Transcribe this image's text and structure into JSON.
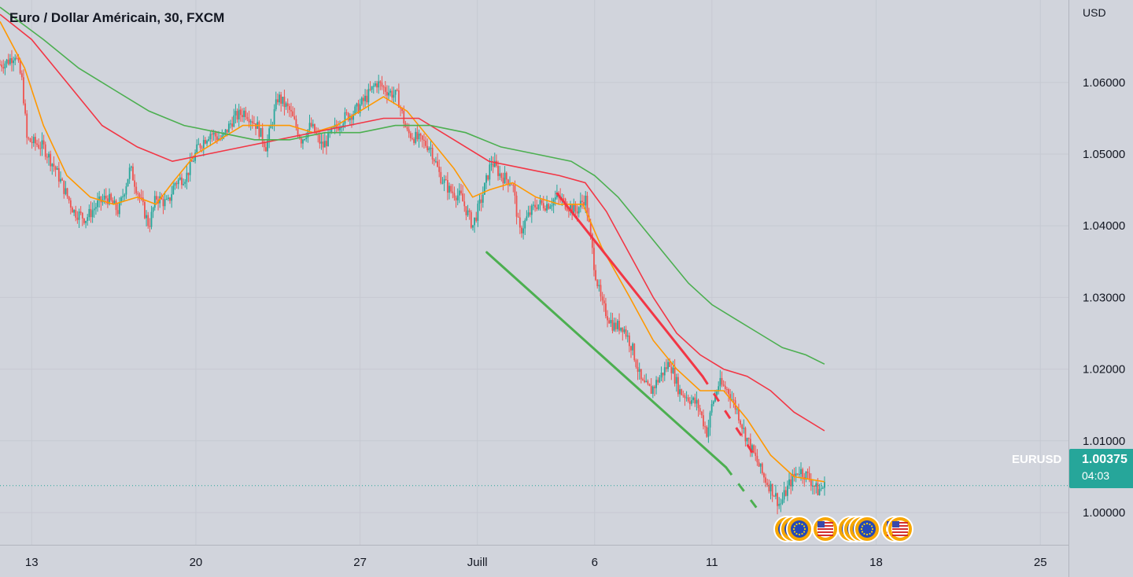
{
  "header": {
    "title": "Euro / Dollar Américain, 30, FXCM",
    "currency": "USD"
  },
  "last_price": {
    "symbol": "EURUSD",
    "value": "1.00375",
    "countdown": "04:03",
    "color": "#26a69a"
  },
  "colors": {
    "background": "#d1d4dc",
    "grid": "#c6c9d2",
    "candle_up": "#26a69a",
    "candle_down": "#ef5350",
    "ema_fast": "#ff9800",
    "ema_mid": "#f23645",
    "ema_slow": "#4caf50",
    "trend_upper": "#f23645",
    "trend_lower": "#4caf50"
  },
  "chart_data": {
    "type": "candlestick",
    "title": "Euro / Dollar Américain, 30, FXCM",
    "ylabel": "USD",
    "ylim": [
      0.9955,
      1.0715
    ],
    "y_ticks": [
      "1.06000",
      "1.05000",
      "1.04000",
      "1.03000",
      "1.02000",
      "1.01000",
      "1.00000"
    ],
    "x_ticks": [
      {
        "label": "13",
        "day": 0
      },
      {
        "label": "20",
        "day": 7
      },
      {
        "label": "27",
        "day": 14
      },
      {
        "label": "Juill",
        "day": 19
      },
      {
        "label": "6",
        "day": 24
      },
      {
        "label": "11",
        "day": 29
      },
      {
        "label": "18",
        "day": 36
      },
      {
        "label": "25",
        "day": 43
      }
    ],
    "xlim": [
      -1.35,
      44.2
    ],
    "price_path": [
      [
        -1.35,
        1.0625
      ],
      [
        -1.0,
        1.063
      ],
      [
        -0.7,
        1.064
      ],
      [
        -0.4,
        1.06
      ],
      [
        -0.2,
        1.052
      ],
      [
        0.5,
        1.051
      ],
      [
        1.0,
        1.048
      ],
      [
        1.4,
        1.045
      ],
      [
        1.8,
        1.042
      ],
      [
        2.3,
        1.041
      ],
      [
        2.8,
        1.043
      ],
      [
        3.2,
        1.044
      ],
      [
        3.7,
        1.042
      ],
      [
        4.2,
        1.048
      ],
      [
        4.7,
        1.043
      ],
      [
        5.0,
        1.04
      ],
      [
        5.3,
        1.044
      ],
      [
        5.8,
        1.043
      ],
      [
        6.1,
        1.046
      ],
      [
        6.6,
        1.047
      ],
      [
        7.1,
        1.051
      ],
      [
        7.6,
        1.053
      ],
      [
        8.1,
        1.052
      ],
      [
        8.6,
        1.055
      ],
      [
        9.1,
        1.056
      ],
      [
        9.6,
        1.054
      ],
      [
        10.0,
        1.051
      ],
      [
        10.5,
        1.058
      ],
      [
        11.0,
        1.056
      ],
      [
        11.5,
        1.052
      ],
      [
        11.9,
        1.054
      ],
      [
        12.4,
        1.051
      ],
      [
        12.8,
        1.053
      ],
      [
        13.3,
        1.055
      ],
      [
        13.8,
        1.056
      ],
      [
        14.3,
        1.058
      ],
      [
        14.7,
        1.06
      ],
      [
        15.1,
        1.059
      ],
      [
        15.6,
        1.058
      ],
      [
        16.0,
        1.053
      ],
      [
        16.5,
        1.052
      ],
      [
        17.0,
        1.051
      ],
      [
        17.4,
        1.047
      ],
      [
        17.8,
        1.045
      ],
      [
        18.3,
        1.044
      ],
      [
        18.8,
        1.04
      ],
      [
        19.2,
        1.044
      ],
      [
        19.6,
        1.049
      ],
      [
        20.0,
        1.047
      ],
      [
        20.5,
        1.046
      ],
      [
        20.8,
        1.039
      ],
      [
        21.1,
        1.041
      ],
      [
        21.5,
        1.043
      ],
      [
        22.0,
        1.043
      ],
      [
        22.4,
        1.044
      ],
      [
        22.8,
        1.043
      ],
      [
        23.2,
        1.042
      ],
      [
        23.6,
        1.044
      ],
      [
        24.0,
        1.034
      ],
      [
        24.3,
        1.029
      ],
      [
        24.8,
        1.026
      ],
      [
        25.2,
        1.026
      ],
      [
        25.6,
        1.023
      ],
      [
        26.0,
        1.018
      ],
      [
        26.4,
        1.017
      ],
      [
        26.8,
        1.019
      ],
      [
        27.2,
        1.021
      ],
      [
        27.6,
        1.017
      ],
      [
        28.0,
        1.016
      ],
      [
        28.4,
        1.015
      ],
      [
        28.8,
        1.011
      ],
      [
        29.0,
        1.015
      ],
      [
        29.3,
        1.018
      ],
      [
        29.7,
        1.017
      ],
      [
        30.1,
        1.014
      ],
      [
        30.4,
        1.011
      ],
      [
        30.8,
        1.008
      ],
      [
        31.2,
        1.005
      ],
      [
        31.6,
        1.003
      ],
      [
        31.9,
        1.001
      ],
      [
        32.3,
        1.004
      ],
      [
        32.7,
        1.006
      ],
      [
        33.1,
        1.005
      ],
      [
        33.5,
        1.003
      ],
      [
        33.8,
        1.0037
      ]
    ],
    "series": [
      {
        "kind": "ema_fast",
        "points": [
          [
            -1.35,
            1.0685
          ],
          [
            -0.3,
            1.062
          ],
          [
            0.5,
            1.054
          ],
          [
            1.5,
            1.047
          ],
          [
            2.5,
            1.044
          ],
          [
            3.5,
            1.043
          ],
          [
            4.5,
            1.044
          ],
          [
            5.3,
            1.043
          ],
          [
            6.0,
            1.046
          ],
          [
            7.0,
            1.05
          ],
          [
            8.0,
            1.052
          ],
          [
            9.0,
            1.054
          ],
          [
            10.0,
            1.054
          ],
          [
            11.0,
            1.054
          ],
          [
            12.0,
            1.053
          ],
          [
            13.0,
            1.054
          ],
          [
            14.0,
            1.056
          ],
          [
            15.0,
            1.058
          ],
          [
            16.0,
            1.056
          ],
          [
            17.0,
            1.052
          ],
          [
            18.0,
            1.048
          ],
          [
            18.8,
            1.044
          ],
          [
            19.5,
            1.045
          ],
          [
            20.5,
            1.046
          ],
          [
            21.5,
            1.044
          ],
          [
            22.5,
            1.043
          ],
          [
            23.5,
            1.043
          ],
          [
            24.3,
            1.037
          ],
          [
            25.5,
            1.03
          ],
          [
            26.5,
            1.024
          ],
          [
            27.5,
            1.02
          ],
          [
            28.5,
            1.017
          ],
          [
            29.5,
            1.017
          ],
          [
            30.5,
            1.013
          ],
          [
            31.5,
            1.008
          ],
          [
            32.5,
            1.005
          ],
          [
            33.8,
            1.0043
          ]
        ]
      },
      {
        "kind": "ema_mid",
        "points": [
          [
            -1.35,
            1.0695
          ],
          [
            0.0,
            1.066
          ],
          [
            1.5,
            1.06
          ],
          [
            3.0,
            1.054
          ],
          [
            4.5,
            1.051
          ],
          [
            6.0,
            1.049
          ],
          [
            7.5,
            1.05
          ],
          [
            9.0,
            1.051
          ],
          [
            10.5,
            1.052
          ],
          [
            12.0,
            1.053
          ],
          [
            13.5,
            1.054
          ],
          [
            15.0,
            1.055
          ],
          [
            16.5,
            1.055
          ],
          [
            18.0,
            1.052
          ],
          [
            19.5,
            1.049
          ],
          [
            21.0,
            1.048
          ],
          [
            22.5,
            1.047
          ],
          [
            23.6,
            1.046
          ],
          [
            24.5,
            1.042
          ],
          [
            25.5,
            1.036
          ],
          [
            26.5,
            1.03
          ],
          [
            27.5,
            1.025
          ],
          [
            28.5,
            1.022
          ],
          [
            29.5,
            1.02
          ],
          [
            30.5,
            1.019
          ],
          [
            31.5,
            1.017
          ],
          [
            32.5,
            1.014
          ],
          [
            33.8,
            1.0114
          ]
        ]
      },
      {
        "kind": "ema_slow",
        "points": [
          [
            -1.35,
            1.0705
          ],
          [
            0.5,
            1.066
          ],
          [
            2.0,
            1.062
          ],
          [
            3.5,
            1.059
          ],
          [
            5.0,
            1.056
          ],
          [
            6.5,
            1.054
          ],
          [
            8.0,
            1.053
          ],
          [
            9.5,
            1.052
          ],
          [
            11.0,
            1.052
          ],
          [
            12.5,
            1.053
          ],
          [
            14.0,
            1.053
          ],
          [
            15.5,
            1.054
          ],
          [
            17.0,
            1.054
          ],
          [
            18.5,
            1.053
          ],
          [
            20.0,
            1.051
          ],
          [
            21.5,
            1.05
          ],
          [
            23.0,
            1.049
          ],
          [
            24.0,
            1.047
          ],
          [
            25.0,
            1.044
          ],
          [
            26.0,
            1.04
          ],
          [
            27.0,
            1.036
          ],
          [
            28.0,
            1.032
          ],
          [
            29.0,
            1.029
          ],
          [
            30.0,
            1.027
          ],
          [
            31.0,
            1.025
          ],
          [
            32.0,
            1.023
          ],
          [
            33.0,
            1.022
          ],
          [
            33.8,
            1.0207
          ]
        ]
      }
    ],
    "trendlines": [
      {
        "kind": "upper",
        "from": [
          22.4,
          1.0445
        ],
        "to": [
          28.6,
          1.019
        ],
        "dash_to": [
          30.9,
          1.0075
        ]
      },
      {
        "kind": "lower",
        "from": [
          19.4,
          1.0363
        ],
        "to": [
          29.6,
          1.0063
        ],
        "dash_to": [
          31.1,
          0.9998
        ]
      }
    ],
    "events": [
      "EUR",
      "EUR",
      "EUR",
      "USD",
      "EUR",
      "EUR",
      "EUR",
      "EUR",
      "USD",
      "USD"
    ]
  }
}
